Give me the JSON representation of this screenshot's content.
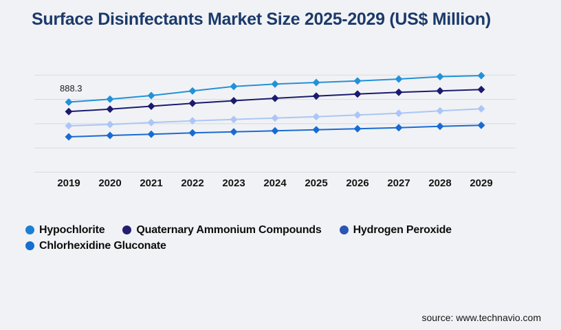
{
  "header": {
    "title": "Surface Disinfectants Market Size 2025-2029 (US$ Million)"
  },
  "chart_data": {
    "type": "line",
    "title": "Surface Disinfectants Market Size 2025-2029 (US$ Million)",
    "units": "US$ Million",
    "categories": [
      "2019",
      "2020",
      "2021",
      "2022",
      "2023",
      "2024",
      "2025",
      "2026",
      "2027",
      "2028",
      "2029"
    ],
    "series": [
      {
        "name": "Hypochlorite",
        "color": "#2191d9",
        "values": [
          888.3,
          924.9,
          971.0,
          1029.4,
          1086.8,
          1116.4,
          1136.5,
          1156.5,
          1180.0,
          1210.9,
          1223.6
        ]
      },
      {
        "name": "Quaternary Ammonium Compounds",
        "color": "#1b1a6e",
        "values": [
          768.1,
          798.6,
          836.0,
          872.6,
          905.7,
          936.2,
          964.0,
          990.2,
          1012.0,
          1030.2,
          1047.7
        ]
      },
      {
        "name": "Hydrogen Peroxide",
        "color": "#abc6f6",
        "values": [
          587.8,
          605.2,
          628.8,
          651.4,
          668.8,
          686.2,
          703.7,
          724.6,
          747.2,
          776.8,
          802.9
        ]
      },
      {
        "name": "Chlorhexidine Gluconate",
        "color": "#186bd3",
        "values": [
          448.5,
          465.9,
          480.7,
          498.1,
          512.1,
          524.3,
          538.2,
          550.4,
          564.3,
          581.7,
          593.9
        ]
      }
    ],
    "annotation": {
      "text": "888.3",
      "series": "Hypochlorite",
      "category": "2019",
      "value": 888.3
    },
    "marker": "diamond",
    "grid": "horizontal",
    "gridline_count": 5,
    "y_axis_labels_visible": false,
    "ylim": [
      0,
      1400
    ],
    "legend_position": "bottom-left"
  },
  "legend": {
    "items": [
      {
        "label": "Hypochlorite",
        "dot_color": "#1b7fd4"
      },
      {
        "label": "Quaternary Ammonium Compounds",
        "dot_color": "#221f70"
      },
      {
        "label": "Hydrogen Peroxide",
        "dot_color": "#2a55b4"
      },
      {
        "label": "Chlorhexidine Gluconate",
        "dot_color": "#146fcf"
      }
    ]
  },
  "footer": {
    "source": "source: www.technavio.com"
  }
}
